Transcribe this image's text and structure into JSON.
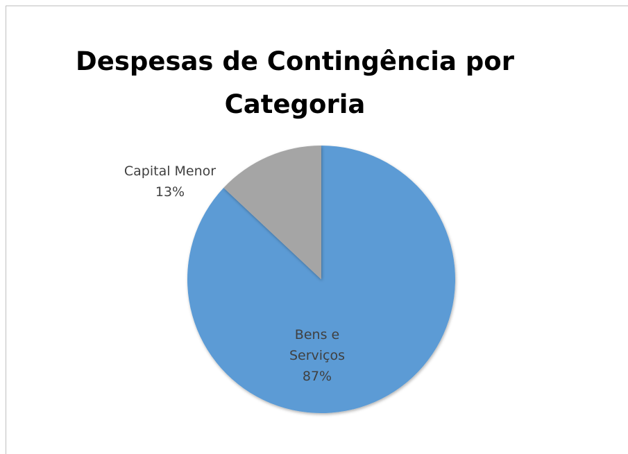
{
  "chart_data": {
    "type": "pie",
    "title": "Despesas de Contingência por Categoria",
    "categories": [
      "Bens e Serviços",
      "Capital Menor"
    ],
    "values": [
      87,
      13
    ],
    "value_labels": [
      "87%",
      "13%"
    ],
    "colors": [
      "#5b9bd5",
      "#a5a5a5"
    ]
  }
}
